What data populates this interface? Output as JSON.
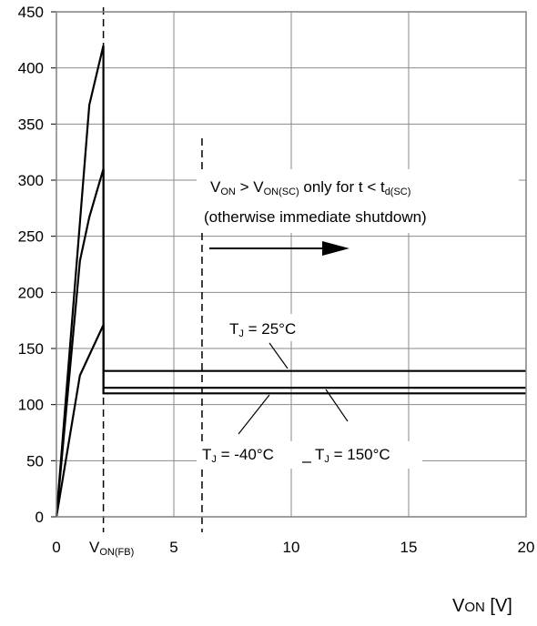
{
  "chart_data": {
    "type": "line",
    "title": "",
    "xlabel": "V_ON [V]",
    "ylabel": "",
    "xlim": [
      0,
      20
    ],
    "ylim": [
      0,
      450
    ],
    "x_ticks": [
      0,
      5,
      10,
      15,
      20
    ],
    "y_ticks": [
      0,
      50,
      100,
      150,
      200,
      250,
      300,
      350,
      400,
      450
    ],
    "x_tick_labels": [
      "0",
      "5",
      "10",
      "15",
      "20"
    ],
    "y_tick_labels": [
      "0",
      "50",
      "100",
      "150",
      "200",
      "250",
      "300",
      "350",
      "400",
      "450"
    ],
    "grid": true,
    "series": [
      {
        "x": [
          0,
          1.4,
          2,
          20
        ],
        "y": [
          0,
          367,
          420,
          130
        ]
      },
      {
        "x": [
          0,
          1.0,
          1.4,
          2,
          20
        ],
        "y": [
          0,
          228,
          267,
          310,
          115
        ]
      },
      {
        "x": [
          0,
          1.0,
          2,
          20
        ],
        "y": [
          0,
          126,
          171,
          110
        ]
      }
    ],
    "plateaus": [
      130,
      115,
      110
    ],
    "vlines": [
      {
        "x": 2,
        "label": "V_ON(FB)"
      },
      {
        "x": 6.2,
        "label": ""
      }
    ],
    "annotations": {
      "condition_line1": "V_ON > V_ON(SC) only for t < t_d(SC)",
      "condition_line2": "(otherwise immediate shutdown)",
      "tj25": "T_J = 25°C",
      "tjm40": "T_J = -40°C",
      "tj150": "T_J = 150°C"
    }
  },
  "labels": {
    "von_fb": {
      "main": "V",
      "sub": "ON(FB)"
    },
    "cond_a": {
      "v1": "V",
      "s1": "ON",
      "mid": " > V",
      "s2": "ON(SC)",
      "tail": " only for t <  t",
      "s3": "d(SC)"
    },
    "cond_b": "(otherwise immediate shutdown)",
    "tj25": {
      "t": "T",
      "s": "J",
      "rest": " = 25°C"
    },
    "tjm40": {
      "t": "T",
      "s": "J",
      "rest": " = -40°C"
    },
    "tj150": {
      "t": "T",
      "s": "J",
      "rest": " = 150°C"
    },
    "xaxis": {
      "main": "V",
      "sub": "ON",
      "unit": " [V]"
    }
  }
}
